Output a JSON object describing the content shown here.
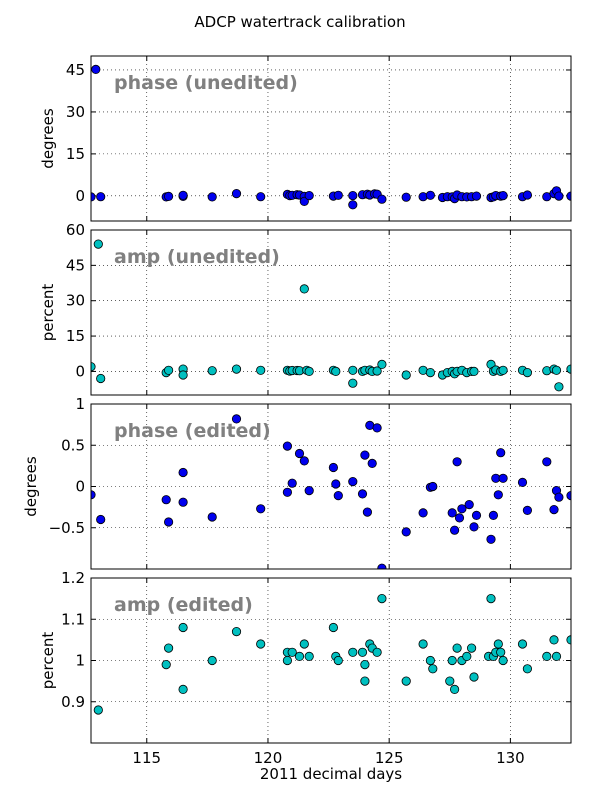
{
  "chart_data": {
    "title": "ADCP watertrack calibration",
    "xlabel": "2011 decimal days",
    "xlim": [
      112.7,
      132.5
    ],
    "xticks": [
      115,
      120,
      125,
      130
    ],
    "panels": [
      {
        "type": "scatter",
        "label": "phase (unedited)",
        "ylabel": "degrees",
        "ylim": [
          -9,
          50
        ],
        "yticks": [
          0,
          15,
          30,
          45
        ],
        "color": "#0000ee",
        "x": [
          112.7,
          112.9,
          113.1,
          115.8,
          115.9,
          116.5,
          116.5,
          117.7,
          118.7,
          119.7,
          120.8,
          120.9,
          121.0,
          121.2,
          121.3,
          121.5,
          121.5,
          121.7,
          122.7,
          122.9,
          123.5,
          123.5,
          123.9,
          124.1,
          124.2,
          124.4,
          124.5,
          124.7,
          125.7,
          126.4,
          126.7,
          127.2,
          127.4,
          127.6,
          127.7,
          127.8,
          128.0,
          128.2,
          128.4,
          128.6,
          129.2,
          129.3,
          129.4,
          129.6,
          129.7,
          130.5,
          130.7,
          131.5,
          131.8,
          131.9,
          132.0,
          132.5
        ],
        "y": [
          -0.4,
          45.2,
          -0.3,
          -0.4,
          -0.2,
          -0.2,
          0.2,
          -0.4,
          0.8,
          -0.3,
          0.5,
          0.1,
          0.2,
          0.4,
          0.3,
          -0.2,
          -2,
          0.1,
          -0.1,
          0.2,
          -3.2,
          0.1,
          0.4,
          0.6,
          0.3,
          0.7,
          0.6,
          -1.2,
          -0.5,
          -0.3,
          0.2,
          -0.6,
          -0.3,
          -0.4,
          -1.0,
          0.3,
          -0.3,
          -0.4,
          -0.3,
          -0.1,
          -0.6,
          -0.4,
          0.1,
          -0.1,
          0.1,
          -0.3,
          0.3,
          -0.3,
          0.8,
          1.8,
          -0.1,
          -0.1
        ]
      },
      {
        "type": "scatter",
        "label": "amp (unedited)",
        "ylabel": "percent",
        "ylim": [
          -10,
          60
        ],
        "yticks": [
          0,
          15,
          30,
          45,
          60
        ],
        "color": "#00c0c0",
        "x": [
          112.7,
          113.0,
          113.1,
          115.8,
          115.9,
          116.5,
          116.5,
          117.7,
          118.7,
          119.7,
          120.8,
          120.9,
          121.0,
          121.2,
          121.3,
          121.5,
          121.6,
          121.7,
          122.7,
          122.8,
          123.5,
          123.5,
          123.9,
          124.0,
          124.2,
          124.3,
          124.5,
          124.7,
          125.7,
          126.4,
          126.7,
          127.2,
          127.4,
          127.6,
          127.7,
          127.8,
          128.0,
          128.2,
          128.4,
          128.5,
          129.2,
          129.3,
          129.4,
          129.6,
          129.7,
          130.5,
          130.7,
          131.5,
          131.8,
          131.9,
          132.0,
          132.5
        ],
        "y": [
          2.0,
          54.0,
          -3.0,
          -0.5,
          0.5,
          1.0,
          -1.5,
          0.3,
          1.0,
          0.5,
          0.5,
          0.2,
          0.4,
          0.4,
          0.3,
          35.0,
          0.5,
          0.0,
          0.5,
          0.0,
          -5.0,
          0.5,
          0.0,
          0.5,
          0.6,
          0.0,
          0.2,
          3.0,
          -1.5,
          0.5,
          -0.5,
          -1.5,
          -0.5,
          0.0,
          -1.0,
          0.0,
          0.5,
          -0.5,
          0.0,
          0.0,
          3.0,
          0.0,
          0.6,
          0.0,
          0.5,
          0.5,
          -0.5,
          0.3,
          1.0,
          0.5,
          -6.5,
          1.0
        ]
      },
      {
        "type": "scatter",
        "label": "phase (edited)",
        "ylabel": "degrees",
        "ylim": [
          -1.0,
          1.0
        ],
        "yticks": [
          -0.5,
          0.0,
          0.5,
          1.0
        ],
        "color": "#0000ee",
        "x": [
          112.7,
          113.1,
          115.8,
          115.9,
          116.5,
          116.5,
          117.7,
          118.7,
          119.7,
          120.8,
          120.8,
          121.0,
          121.3,
          121.5,
          121.7,
          122.7,
          122.8,
          122.9,
          123.5,
          123.9,
          124.0,
          124.1,
          124.2,
          124.3,
          124.5,
          124.7,
          125.7,
          126.4,
          126.7,
          126.8,
          127.6,
          127.7,
          127.8,
          127.9,
          128.0,
          128.3,
          128.5,
          128.6,
          129.2,
          129.3,
          129.4,
          129.5,
          129.6,
          129.7,
          130.5,
          130.7,
          131.5,
          131.8,
          131.9,
          132.0,
          132.5
        ],
        "y": [
          -0.1,
          -0.4,
          -0.16,
          -0.43,
          0.17,
          -0.19,
          -0.37,
          0.82,
          -0.27,
          -0.07,
          0.49,
          0.04,
          0.4,
          0.31,
          -0.05,
          0.23,
          0.03,
          -0.11,
          0.06,
          -0.09,
          0.38,
          -0.31,
          0.74,
          0.28,
          0.71,
          -0.99,
          -0.55,
          -0.32,
          -0.01,
          0.0,
          -0.32,
          -0.53,
          0.3,
          -0.38,
          -0.27,
          -0.22,
          -0.49,
          -0.35,
          -0.64,
          -0.35,
          0.1,
          -0.1,
          0.41,
          0.1,
          0.05,
          -0.29,
          0.3,
          -0.28,
          -0.05,
          -0.13,
          -0.11
        ]
      },
      {
        "type": "scatter",
        "label": "amp (edited)",
        "ylabel": "percent",
        "ylim": [
          0.8,
          1.2
        ],
        "yticks": [
          0.9,
          1.0,
          1.1,
          1.2
        ],
        "color": "#00c0c0",
        "x": [
          113.0,
          115.8,
          115.9,
          116.5,
          116.5,
          117.7,
          118.7,
          119.7,
          120.8,
          120.8,
          121.0,
          121.3,
          121.5,
          121.7,
          122.7,
          122.8,
          122.9,
          123.5,
          123.9,
          124.0,
          124.0,
          124.2,
          124.3,
          124.5,
          124.7,
          125.7,
          126.4,
          126.7,
          126.8,
          127.5,
          127.6,
          127.7,
          127.8,
          128.0,
          128.2,
          128.4,
          128.5,
          129.1,
          129.2,
          129.3,
          129.4,
          129.5,
          129.6,
          129.7,
          130.5,
          130.7,
          131.5,
          131.8,
          131.9,
          132.5
        ],
        "y": [
          0.88,
          0.99,
          1.03,
          1.08,
          0.93,
          1.0,
          1.07,
          1.04,
          1.02,
          1.0,
          1.02,
          1.01,
          1.04,
          1.01,
          1.08,
          1.01,
          1.0,
          1.02,
          1.02,
          0.99,
          0.95,
          1.04,
          1.03,
          1.02,
          1.15,
          0.95,
          1.04,
          1.0,
          0.98,
          0.95,
          1.0,
          0.93,
          1.03,
          1.0,
          1.01,
          1.03,
          0.96,
          1.01,
          1.15,
          1.01,
          1.02,
          1.04,
          1.02,
          1.0,
          1.04,
          0.98,
          1.01,
          1.05,
          1.01,
          1.05
        ]
      }
    ]
  }
}
